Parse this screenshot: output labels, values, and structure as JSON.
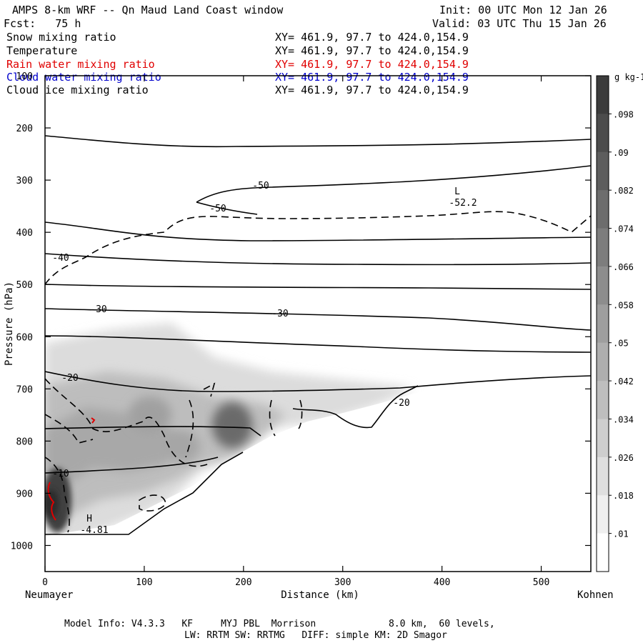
{
  "header": {
    "title": "AMPS 8-km WRF -- Qn Maud Land Coast window",
    "forecast": "Fcst:   75 h",
    "init": "Init: 00 UTC Mon 12 Jan 26",
    "valid": "Valid: 03 UTC Thu 15 Jan 26"
  },
  "fields": [
    {
      "name": "Snow mixing ratio",
      "xy": "XY= 461.9, 97.7 to 424.0,154.9",
      "color": "#000000"
    },
    {
      "name": "Temperature",
      "xy": "XY= 461.9, 97.7 to 424.0,154.9",
      "color": "#000000"
    },
    {
      "name": "Rain water mixing ratio",
      "xy": "XY= 461.9, 97.7 to 424.0,154.9",
      "color": "#e00000"
    },
    {
      "name": "Cloud water mixing ratio",
      "xy": "XY= 461.9, 97.7 to 424.0,154.9",
      "color": "#0000cc"
    },
    {
      "name": "Cloud ice mixing ratio",
      "xy": "XY= 461.9, 97.7 to 424.0,154.9",
      "color": "#000000"
    }
  ],
  "footer": {
    "line1": "Model Info: V4.3.3   KF     MYJ PBL  Morrison             8.0 km,  60 levels,",
    "line2": "LW: RRTM SW: RRTMG   DIFF: simple KM: 2D Smagor"
  },
  "chart_data": {
    "type": "heatmap",
    "xlabel": "Distance (km)",
    "ylabel": "Pressure (hPa)",
    "x_left_label": "Neumayer",
    "x_right_label": "Kohnen",
    "xlim": [
      0,
      550
    ],
    "ylim": [
      1050,
      100
    ],
    "x_ticks": [
      0,
      100,
      200,
      300,
      400,
      500
    ],
    "y_ticks": [
      100,
      200,
      300,
      400,
      500,
      600,
      700,
      800,
      900,
      1000
    ],
    "colorbar": {
      "unit": "g kg-1",
      "ticks": [
        ".098",
        ".09",
        ".082",
        ".074",
        ".066",
        ".058",
        ".05",
        ".042",
        ".034",
        ".026",
        ".018",
        ".01"
      ]
    },
    "temperature_contour_labels": [
      "-50",
      "-50",
      "-40",
      "-30",
      "-30",
      "-20",
      "-20",
      "-10"
    ],
    "annotations": {
      "low": {
        "symbol": "L",
        "value": "-52.2",
        "x": 412,
        "p": 345
      },
      "high": {
        "symbol": "H",
        "value": "-4.81",
        "x": 45,
        "p": 960
      }
    },
    "grid": false,
    "legend": "colorbar-right"
  }
}
